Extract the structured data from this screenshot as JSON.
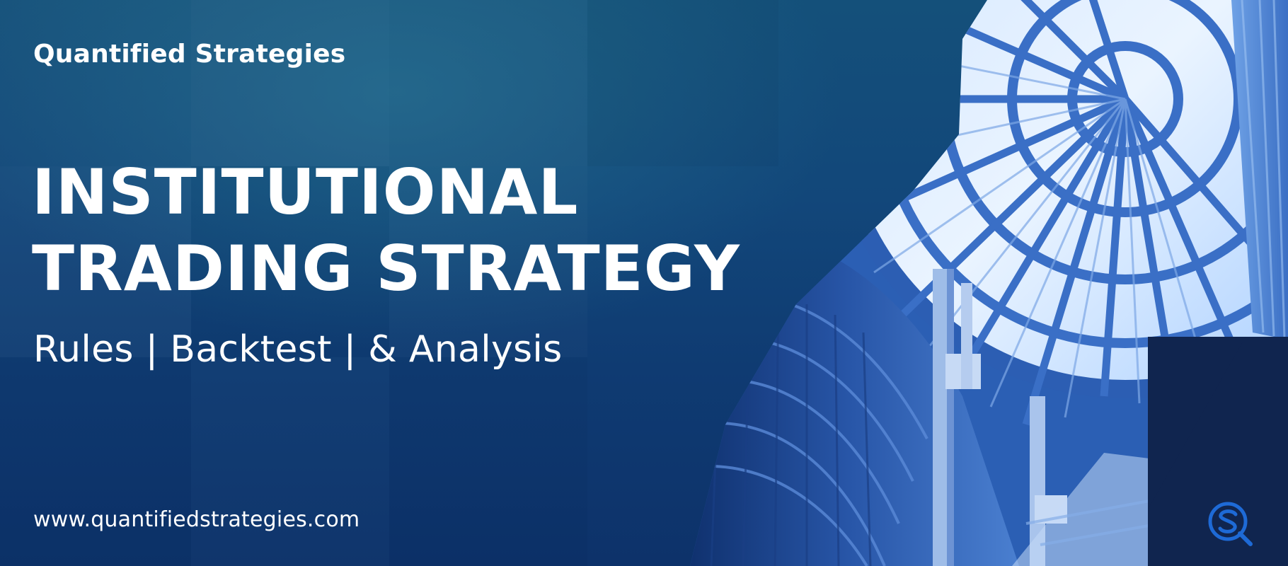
{
  "brand": {
    "name": "Quantified Strategies"
  },
  "headline": {
    "line1": "INSTITUTIONAL",
    "line2": "TRADING STRATEGY"
  },
  "subtitle": "Rules | Backtest | & Analysis",
  "website": "www.quantifiedstrategies.com",
  "colors": {
    "background": "#12477a",
    "corner_panel": "#10254f",
    "logo": "#1e6ad6",
    "text": "#ffffff"
  },
  "icons": {
    "logo": "qs-magnifier-logo-icon",
    "photo": "glass-dome-architecture-photo"
  }
}
